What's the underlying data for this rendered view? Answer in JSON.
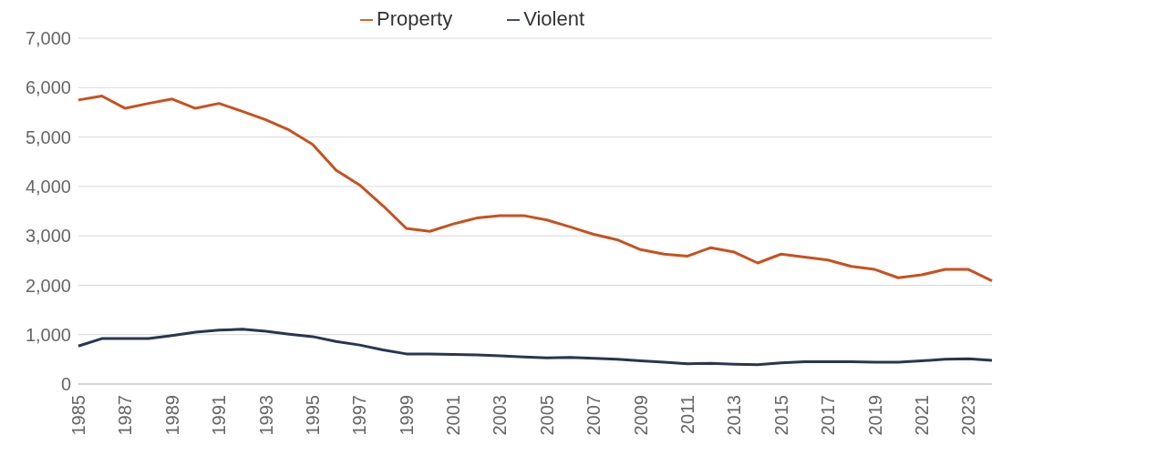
{
  "chart_data": {
    "type": "line",
    "categories": [
      "1985",
      null,
      "1987",
      null,
      "1989",
      null,
      "1991",
      null,
      "1993",
      null,
      "1995",
      null,
      "1997",
      null,
      "1999",
      null,
      "2001",
      null,
      "2003",
      null,
      "2005",
      null,
      "2007",
      null,
      "2009",
      null,
      "2011",
      null,
      "2013",
      null,
      "2015",
      null,
      "2017",
      null,
      "2019",
      null,
      "2021",
      null,
      "2023",
      null
    ],
    "series": [
      {
        "name": "Property",
        "color": "#c8511f",
        "values": [
          5750,
          5830,
          5580,
          5680,
          5770,
          5580,
          5680,
          5520,
          5350,
          5140,
          4850,
          4330,
          4030,
          3610,
          3150,
          3090,
          3240,
          3360,
          3410,
          3410,
          3320,
          3180,
          3030,
          2920,
          2720,
          2630,
          2590,
          2760,
          2670,
          2450,
          2630,
          2570,
          2510,
          2380,
          2320,
          2150,
          2210,
          2320,
          2320,
          2090
        ]
      },
      {
        "name": "Violent",
        "color": "#283750",
        "values": [
          770,
          920,
          920,
          920,
          980,
          1050,
          1090,
          1110,
          1070,
          1010,
          960,
          860,
          790,
          690,
          610,
          610,
          600,
          590,
          570,
          550,
          530,
          540,
          520,
          500,
          470,
          440,
          410,
          420,
          400,
          390,
          430,
          450,
          450,
          450,
          440,
          440,
          470,
          500,
          510,
          480
        ]
      }
    ],
    "ylim": [
      0,
      7000
    ],
    "yticks": [
      {
        "value": 0,
        "label": "0"
      },
      {
        "value": 1000,
        "label": "1,000"
      },
      {
        "value": 2000,
        "label": "2,000"
      },
      {
        "value": 3000,
        "label": "3,000"
      },
      {
        "value": 4000,
        "label": "4,000"
      },
      {
        "value": 5000,
        "label": "5,000"
      },
      {
        "value": 6000,
        "label": "6,000"
      },
      {
        "value": 7000,
        "label": "7,000"
      }
    ],
    "grid": "y",
    "legend": "top",
    "marker": "none",
    "line_style": "solid"
  }
}
